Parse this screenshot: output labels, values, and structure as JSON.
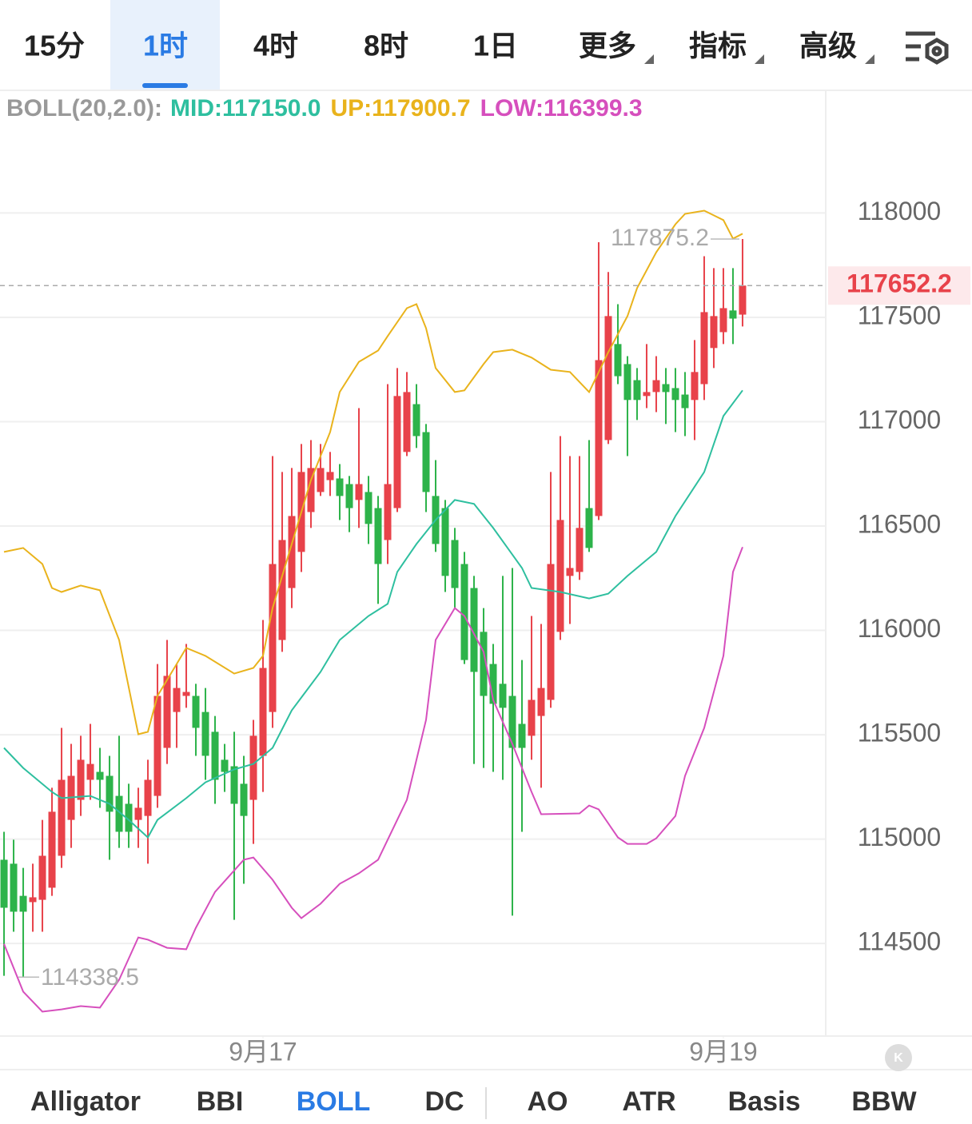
{
  "timeframe_tabs": [
    "15分",
    "1时",
    "4时",
    "8时",
    "1日",
    "更多",
    "指标",
    "高级"
  ],
  "indicator_tabs": [
    "Alligator",
    "BBI",
    "BOLL",
    "DC",
    "AO",
    "ATR",
    "Basis",
    "BBW"
  ],
  "chart_data": {
    "type": "candlestick",
    "indicator_title": "BOLL(20,2.0):",
    "xlim": [
      -0.42,
      85.67
    ],
    "xticks": [
      {
        "value": 27,
        "label": "9月17"
      },
      {
        "value": 75,
        "label": "9月19"
      }
    ],
    "ylim": [
      114060,
      118580
    ],
    "yticks": [
      114500,
      115000,
      115500,
      116000,
      116500,
      117000,
      117500,
      118000
    ],
    "grid": true,
    "up_color": "#e8424a",
    "down_color": "#2db34a",
    "last_price": 117652.2,
    "open": [
      114901,
      114882,
      114728,
      114698,
      114709,
      114767,
      114920,
      115092,
      115188,
      115284,
      115322,
      115303,
      115207,
      115169,
      115092,
      115111,
      115207,
      115437,
      115609,
      115686,
      115686,
      115609,
      115514,
      115380,
      115349,
      115265,
      115188,
      115399,
      115609,
      115954,
      116203,
      116376,
      116567,
      116663,
      116720,
      116728,
      116701,
      116625,
      116663,
      116586,
      116433,
      116586,
      116855,
      117084,
      116950,
      116644,
      116586,
      116433,
      116318,
      116203,
      115993,
      115839,
      115744,
      115686,
      115552,
      115495,
      115590,
      115667,
      115993,
      116261,
      116280,
      116586,
      116548,
      116912,
      117372,
      117276,
      117199,
      117123,
      117142,
      117180,
      117161,
      117130,
      117104,
      117180,
      117353,
      117429,
      117533,
      117513
    ],
    "high": [
      115035,
      114997,
      114862,
      114882,
      115092,
      115246,
      115533,
      115456,
      115495,
      115552,
      115437,
      115399,
      115495,
      115265,
      115246,
      115380,
      115839,
      115954,
      115839,
      115935,
      115744,
      115724,
      115590,
      115456,
      115514,
      115399,
      115571,
      116050,
      116835,
      116759,
      116778,
      116893,
      116912,
      116893,
      116855,
      116797,
      116740,
      117065,
      116740,
      116644,
      117180,
      117257,
      117238,
      117180,
      116989,
      116816,
      116625,
      116491,
      116376,
      116261,
      116107,
      115935,
      116261,
      116299,
      115858,
      116069,
      116031,
      116759,
      116931,
      116835,
      116835,
      116912,
      117860,
      117717,
      117563,
      117314,
      117257,
      117372,
      117314,
      117257,
      117257,
      117238,
      117391,
      117793,
      117736,
      117736,
      117736,
      117875.2
    ],
    "low": [
      114345,
      114556,
      114338.5,
      114556,
      114556,
      114728,
      114862,
      114958,
      115111,
      115188,
      115150,
      114901,
      114958,
      114958,
      114958,
      114882,
      115150,
      115360,
      115437,
      115629,
      115399,
      115284,
      115169,
      115226,
      114613,
      114786,
      114977,
      115226,
      115533,
      115897,
      116107,
      116280,
      116491,
      116644,
      116644,
      116529,
      116471,
      116491,
      116414,
      116127,
      116318,
      116567,
      116835,
      116874,
      116567,
      116376,
      116184,
      116107,
      115839,
      115360,
      115341,
      115322,
      115284,
      114633,
      115035,
      115380,
      115246,
      115629,
      115954,
      116031,
      116242,
      116376,
      116529,
      116893,
      117180,
      116835,
      117008,
      117065,
      117046,
      116989,
      116950,
      116931,
      116912,
      117104,
      117257,
      117372,
      117372,
      117456
    ],
    "close": [
      114671,
      114652,
      114652,
      114721,
      114920,
      115131,
      115284,
      115303,
      115380,
      115360,
      115284,
      115131,
      115035,
      115035,
      115150,
      115284,
      115686,
      115782,
      115724,
      115705,
      115533,
      115399,
      115284,
      115322,
      115169,
      115111,
      115495,
      115820,
      116318,
      116433,
      116548,
      116759,
      116778,
      116778,
      116759,
      116644,
      116586,
      116701,
      116510,
      116318,
      116701,
      117123,
      117142,
      116931,
      116663,
      116414,
      116261,
      116203,
      115858,
      115801,
      115686,
      115648,
      115629,
      115437,
      115437,
      115667,
      115724,
      116318,
      116529,
      116299,
      116491,
      116395,
      117295,
      117506,
      117218,
      117104,
      117104,
      117142,
      117199,
      117142,
      117104,
      117065,
      117238,
      117525,
      117506,
      117544,
      117494,
      117652.2
    ],
    "series": [
      {
        "label": "MID:117150.0",
        "color": "#2ebf9f",
        "x": [
          0,
          2,
          5,
          6,
          9,
          11,
          13,
          15,
          16,
          19,
          21,
          24,
          26,
          28,
          30,
          33,
          35,
          38,
          40,
          41,
          43,
          45,
          47,
          49,
          51,
          54,
          55,
          58,
          61,
          63,
          65,
          68,
          70,
          73,
          75,
          77
        ],
        "values": [
          115437,
          115341,
          115226,
          115196,
          115207,
          115169,
          115092,
          115008,
          115092,
          115196,
          115272,
          115334,
          115360,
          115437,
          115617,
          115801,
          115954,
          116069,
          116127,
          116280,
          116414,
          116529,
          116625,
          116606,
          116491,
          116299,
          116203,
          116184,
          116153,
          116176,
          116261,
          116376,
          116548,
          116759,
          117027,
          117150.0
        ]
      },
      {
        "label": "UP:117900.7",
        "color": "#e9b31c",
        "x": [
          0,
          2,
          4,
          5,
          6,
          8,
          10,
          12,
          14,
          15,
          16,
          18,
          19,
          21,
          24,
          26,
          27,
          28,
          30,
          32,
          34,
          35,
          37,
          39,
          40,
          42,
          43,
          44,
          45,
          47,
          48,
          50,
          51,
          53,
          55,
          57,
          59,
          61,
          63,
          65,
          66,
          68,
          70,
          71,
          73,
          75,
          76,
          77
        ],
        "values": [
          116376,
          116395,
          116318,
          116203,
          116184,
          116215,
          116192,
          115954,
          115502,
          115514,
          115686,
          115839,
          115916,
          115878,
          115793,
          115820,
          115878,
          116107,
          116414,
          116720,
          116950,
          117142,
          117287,
          117341,
          117410,
          117544,
          117563,
          117448,
          117257,
          117142,
          117150,
          117276,
          117333,
          117345,
          117307,
          117249,
          117238,
          117142,
          117333,
          117506,
          117640,
          117812,
          117946,
          117996,
          118011,
          117966,
          117877,
          117900.7
        ]
      },
      {
        "label": "LOW:116399.3",
        "color": "#d64fbd",
        "x": [
          0,
          2,
          4,
          6,
          8,
          10,
          12,
          14,
          15,
          17,
          19,
          20,
          22,
          25,
          26,
          28,
          30,
          31,
          33,
          35,
          37,
          39,
          40,
          42,
          44,
          45,
          47,
          48,
          50,
          51,
          53,
          55,
          56,
          60,
          61,
          62,
          64,
          65,
          67,
          68,
          70,
          71,
          73,
          75,
          76,
          77
        ],
        "values": [
          114498,
          114269,
          114173,
          114184,
          114200,
          114192,
          114326,
          114529,
          114518,
          114479,
          114472,
          114575,
          114747,
          114901,
          114912,
          114805,
          114671,
          114621,
          114690,
          114786,
          114836,
          114901,
          114997,
          115188,
          115571,
          115954,
          116107,
          116069,
          115897,
          115667,
          115456,
          115226,
          115119,
          115123,
          115161,
          115142,
          115008,
          114977,
          114977,
          115004,
          115111,
          115303,
          115533,
          115878,
          116280,
          116399.3
        ]
      }
    ]
  }
}
